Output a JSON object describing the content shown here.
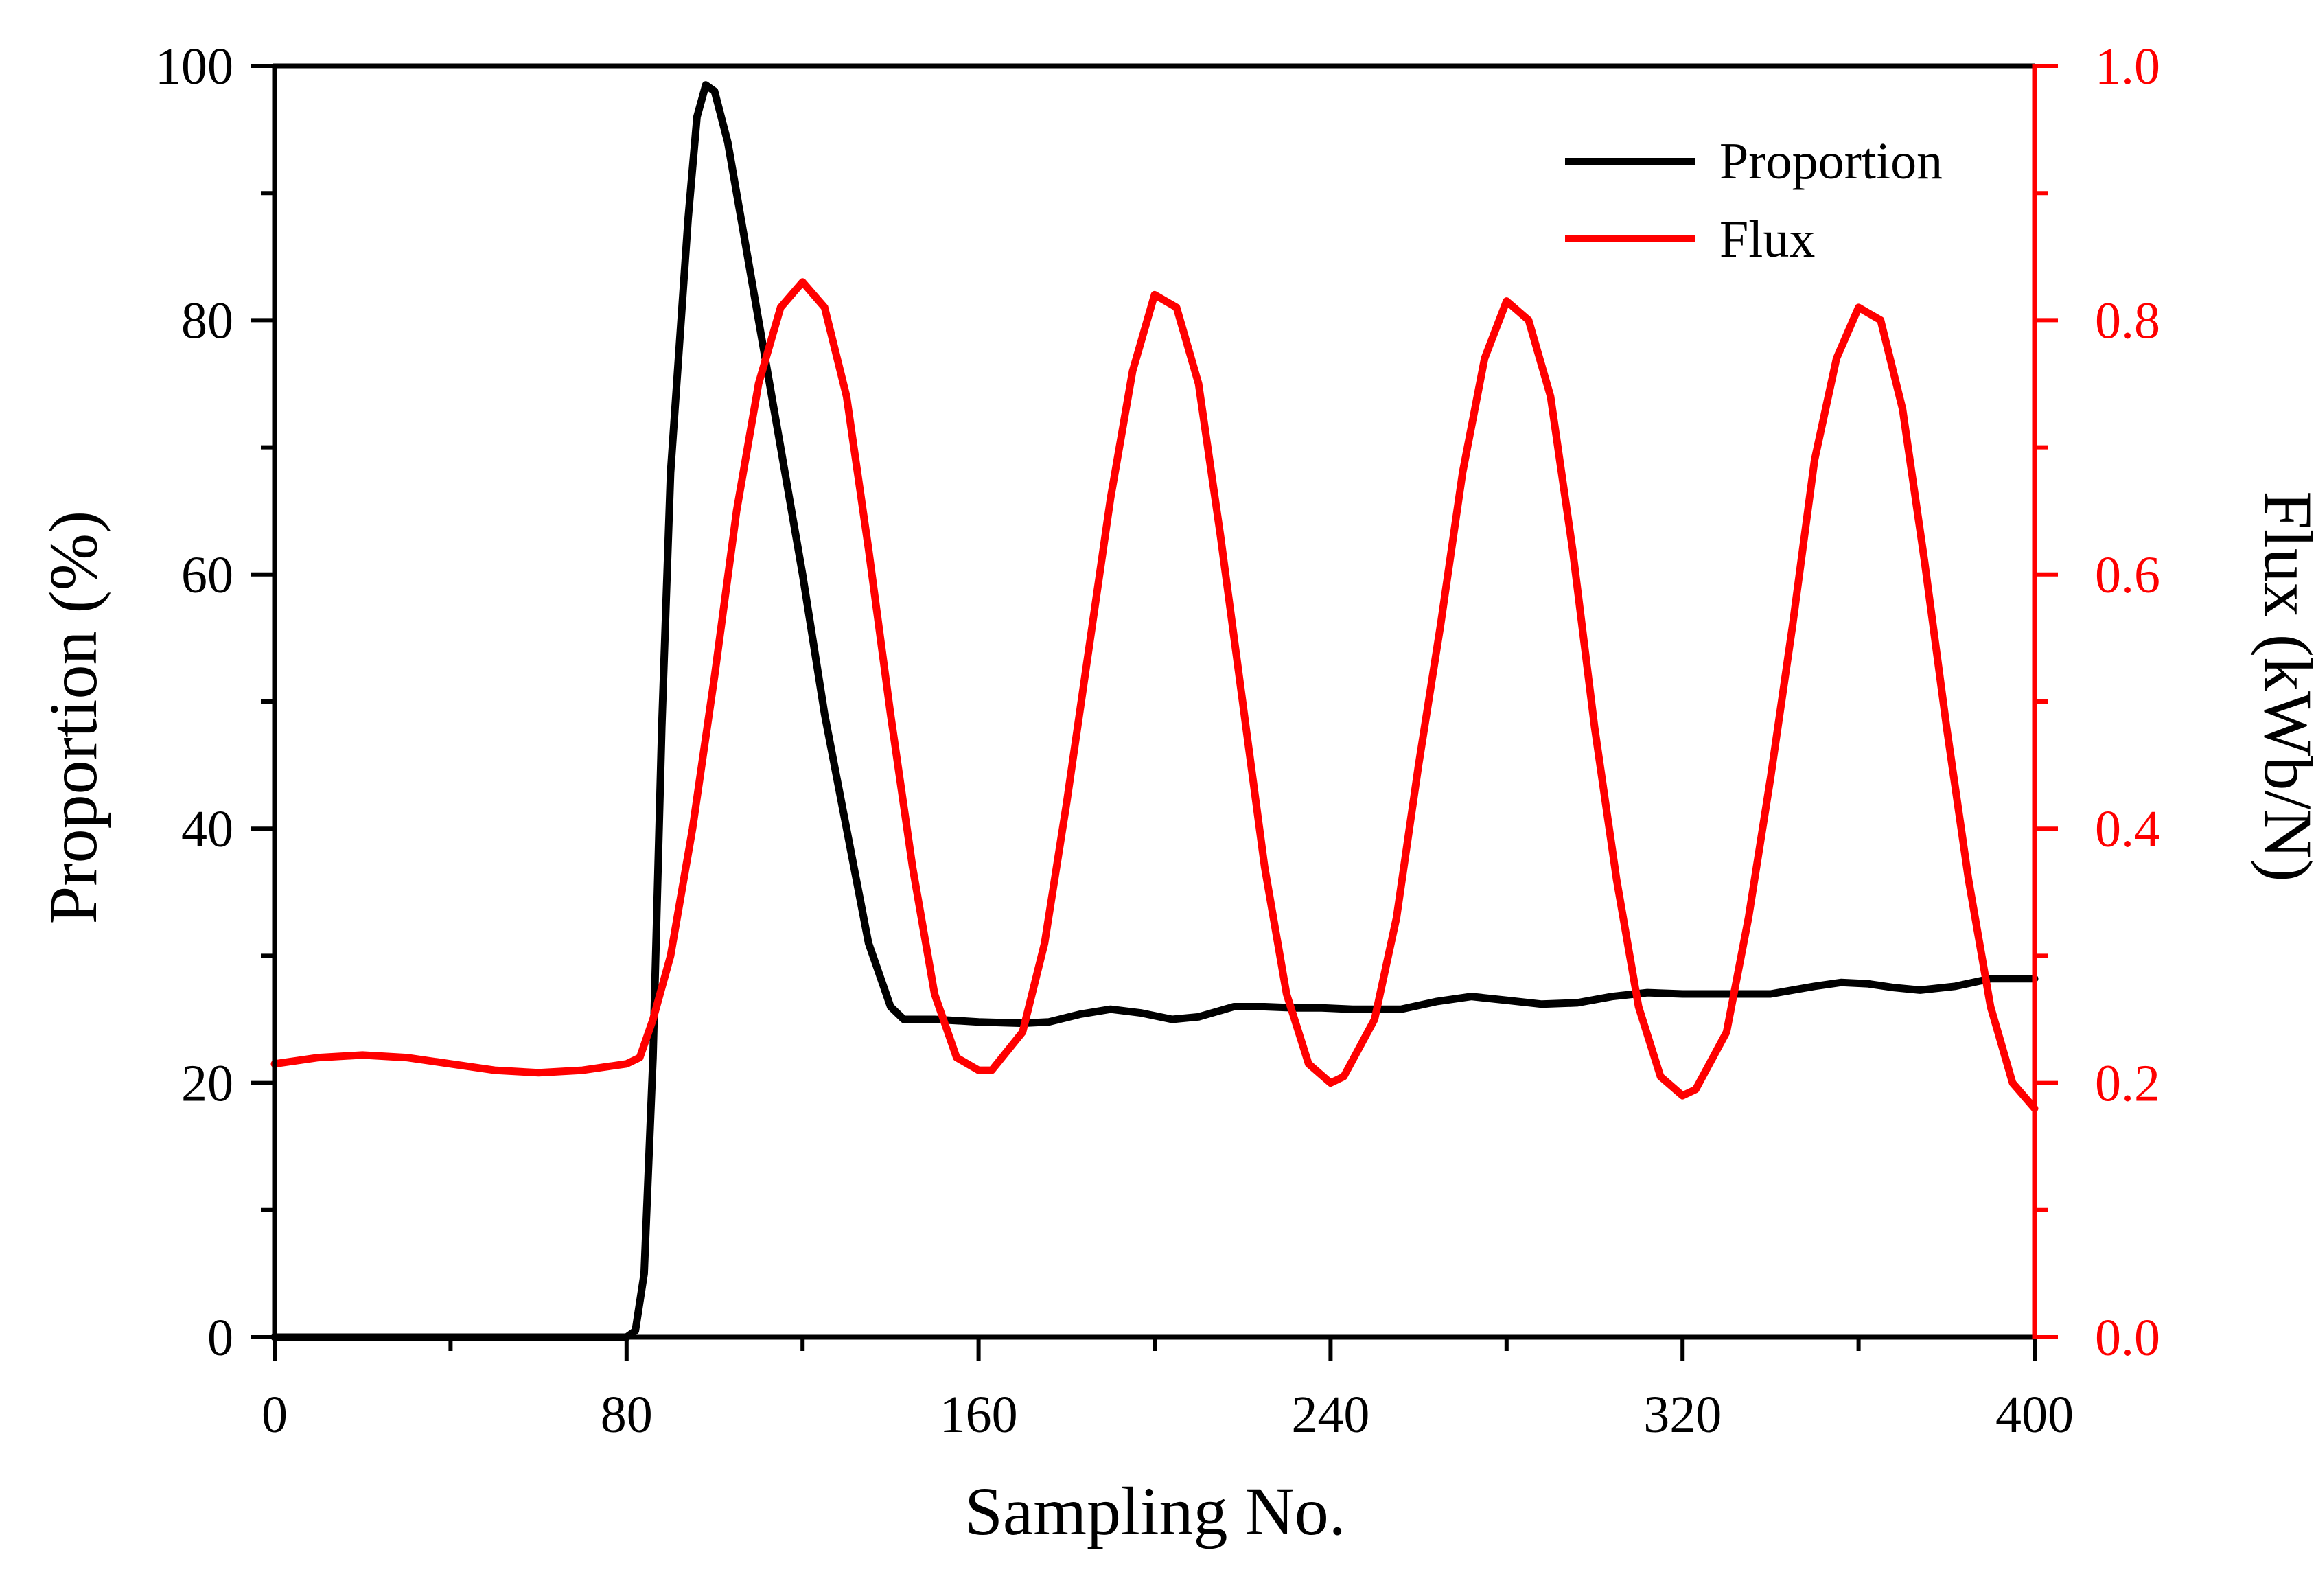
{
  "colors": {
    "proportion": "#000000",
    "flux": "#ff0000",
    "axis_left": "#000000",
    "axis_right": "#ff0000",
    "background": "#ffffff"
  },
  "chart_data": {
    "type": "line",
    "xlabel": "Sampling No.",
    "ylabel_left": "Proportion (%)",
    "ylabel_right": "Flux (kWb/N)",
    "xlim": [
      0,
      400
    ],
    "ylim_left": [
      0,
      100
    ],
    "ylim_right": [
      0.0,
      1.0
    ],
    "x_ticks": [
      "0",
      "80",
      "160",
      "240",
      "320",
      "400"
    ],
    "y_ticks_left": [
      "0",
      "20",
      "40",
      "60",
      "80",
      "100"
    ],
    "y_ticks_right": [
      "0.0",
      "0.2",
      "0.4",
      "0.6",
      "0.8",
      "1.0"
    ],
    "grid": false,
    "legend_position": "top-right",
    "series": [
      {
        "name": "Proportion",
        "axis": "left",
        "color": "#000000",
        "x": [
          0,
          80,
          82,
          84,
          86,
          88,
          90,
          92,
          94,
          96,
          98,
          100,
          103,
          106,
          110,
          115,
          120,
          125,
          130,
          135,
          140,
          143,
          146,
          150,
          160,
          170,
          176,
          183,
          190,
          197,
          204,
          210,
          218,
          225,
          232,
          238,
          245,
          256,
          264,
          272,
          280,
          288,
          296,
          304,
          312,
          320,
          330,
          340,
          350,
          356,
          362,
          368,
          374,
          382,
          390,
          400
        ],
        "y": [
          0,
          0,
          0.5,
          5,
          22,
          48,
          68,
          78,
          88,
          96,
          98.5,
          98,
          94,
          88,
          80,
          70,
          60,
          49,
          40,
          31,
          26,
          25,
          25,
          25,
          24.8,
          24.7,
          24.8,
          25.4,
          25.8,
          25.5,
          25,
          25.2,
          26,
          26,
          25.9,
          25.9,
          25.8,
          25.8,
          26.4,
          26.8,
          26.5,
          26.2,
          26.3,
          26.8,
          27.1,
          27,
          27,
          27,
          27.6,
          27.9,
          27.8,
          27.5,
          27.3,
          27.6,
          28.2,
          28.2
        ]
      },
      {
        "name": "Flux",
        "axis": "right",
        "color": "#ff0000",
        "x": [
          0,
          10,
          20,
          30,
          40,
          50,
          60,
          70,
          80,
          83,
          86,
          90,
          95,
          100,
          105,
          110,
          115,
          120,
          125,
          130,
          135,
          140,
          145,
          150,
          155,
          160,
          163,
          170,
          175,
          180,
          185,
          190,
          195,
          200,
          205,
          210,
          215,
          220,
          225,
          230,
          235,
          240,
          243,
          250,
          255,
          260,
          265,
          270,
          275,
          280,
          285,
          290,
          295,
          300,
          305,
          310,
          315,
          320,
          323,
          330,
          335,
          340,
          345,
          350,
          355,
          360,
          365,
          370,
          375,
          380,
          385,
          390,
          395,
          400
        ],
        "y": [
          0.215,
          0.22,
          0.222,
          0.22,
          0.215,
          0.21,
          0.208,
          0.21,
          0.215,
          0.22,
          0.25,
          0.3,
          0.4,
          0.52,
          0.65,
          0.75,
          0.81,
          0.83,
          0.81,
          0.74,
          0.62,
          0.49,
          0.37,
          0.27,
          0.22,
          0.21,
          0.21,
          0.24,
          0.31,
          0.42,
          0.54,
          0.66,
          0.76,
          0.82,
          0.81,
          0.75,
          0.63,
          0.5,
          0.37,
          0.27,
          0.215,
          0.2,
          0.205,
          0.25,
          0.33,
          0.45,
          0.56,
          0.68,
          0.77,
          0.815,
          0.8,
          0.74,
          0.62,
          0.48,
          0.36,
          0.26,
          0.205,
          0.19,
          0.195,
          0.24,
          0.33,
          0.44,
          0.56,
          0.69,
          0.77,
          0.81,
          0.8,
          0.73,
          0.61,
          0.48,
          0.36,
          0.26,
          0.2,
          0.18
        ]
      }
    ]
  }
}
